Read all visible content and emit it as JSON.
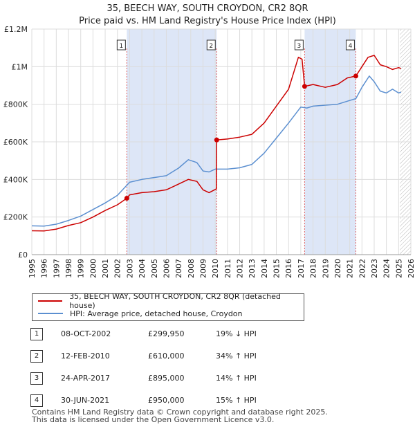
{
  "title": {
    "line1": "35, BEECH WAY, SOUTH CROYDON, CR2 8QR",
    "line2": "Price paid vs. HM Land Registry's House Price Index (HPI)"
  },
  "legend": {
    "property_label": "35, BEECH WAY, SOUTH CROYDON, CR2 8QR (detached house)",
    "hpi_label": "HPI: Average price, detached house, Croydon",
    "property_color": "#cc0000",
    "hpi_color": "#5b8fd0"
  },
  "sales": [
    {
      "num": "1",
      "date": "08-OCT-2002",
      "price": "£299,950",
      "hpi": "19% ↓ HPI"
    },
    {
      "num": "2",
      "date": "12-FEB-2010",
      "price": "£610,000",
      "hpi": "34% ↑ HPI"
    },
    {
      "num": "3",
      "date": "24-APR-2017",
      "price": "£895,000",
      "hpi": "14% ↑ HPI"
    },
    {
      "num": "4",
      "date": "30-JUN-2021",
      "price": "£950,000",
      "hpi": "15% ↑ HPI"
    }
  ],
  "footer": {
    "line1": "Contains HM Land Registry data © Crown copyright and database right 2025.",
    "line2": "This data is licensed under the Open Government Licence v3.0."
  },
  "chart_data": {
    "type": "line",
    "title": "35, BEECH WAY, SOUTH CROYDON, CR2 8QR",
    "subtitle": "Price paid vs. HM Land Registry's House Price Index (HPI)",
    "xlabel": "",
    "ylabel": "",
    "xlim": [
      1995,
      2026
    ],
    "ylim": [
      0,
      1200000
    ],
    "x_ticks": [
      1995,
      1996,
      1997,
      1998,
      1999,
      2000,
      2001,
      2002,
      2003,
      2004,
      2005,
      2006,
      2007,
      2008,
      2009,
      2010,
      2011,
      2012,
      2013,
      2014,
      2015,
      2016,
      2017,
      2018,
      2019,
      2020,
      2021,
      2022,
      2023,
      2024,
      2025,
      2026
    ],
    "y_ticks": [
      {
        "value": 0,
        "label": "£0"
      },
      {
        "value": 200000,
        "label": "£200K"
      },
      {
        "value": 400000,
        "label": "£400K"
      },
      {
        "value": 600000,
        "label": "£600K"
      },
      {
        "value": 800000,
        "label": "£800K"
      },
      {
        "value": 1000000,
        "label": "£1M"
      },
      {
        "value": 1200000,
        "label": "£1.2M"
      }
    ],
    "grid": true,
    "shaded_periods": [
      [
        2002.77,
        2010.12
      ],
      [
        2017.31,
        2021.5
      ]
    ],
    "future_hatch_from": 2025.1,
    "series": [
      {
        "name": "35, BEECH WAY, SOUTH CROYDON, CR2 8QR (detached house)",
        "color": "#cc0000",
        "points": [
          [
            1995,
            127000
          ],
          [
            1996,
            126000
          ],
          [
            1997,
            136000
          ],
          [
            1998,
            155000
          ],
          [
            1999,
            170000
          ],
          [
            2000,
            200000
          ],
          [
            2001,
            235000
          ],
          [
            2002,
            265000
          ],
          [
            2002.77,
            299950
          ],
          [
            2003,
            318000
          ],
          [
            2004,
            330000
          ],
          [
            2005,
            335000
          ],
          [
            2006,
            345000
          ],
          [
            2007,
            375000
          ],
          [
            2007.8,
            400000
          ],
          [
            2008.5,
            390000
          ],
          [
            2009,
            345000
          ],
          [
            2009.5,
            330000
          ],
          [
            2010.1,
            350000
          ],
          [
            2010.12,
            610000
          ],
          [
            2011,
            615000
          ],
          [
            2012,
            625000
          ],
          [
            2013,
            640000
          ],
          [
            2014,
            700000
          ],
          [
            2015,
            790000
          ],
          [
            2016,
            880000
          ],
          [
            2016.8,
            1050000
          ],
          [
            2017.1,
            1040000
          ],
          [
            2017.31,
            895000
          ],
          [
            2018,
            905000
          ],
          [
            2019,
            890000
          ],
          [
            2020,
            905000
          ],
          [
            2020.8,
            940000
          ],
          [
            2021.5,
            950000
          ],
          [
            2022,
            1000000
          ],
          [
            2022.5,
            1050000
          ],
          [
            2023,
            1060000
          ],
          [
            2023.5,
            1010000
          ],
          [
            2024,
            1000000
          ],
          [
            2024.5,
            985000
          ],
          [
            2025,
            995000
          ],
          [
            2025.2,
            990000
          ]
        ]
      },
      {
        "name": "HPI: Average price, detached house, Croydon",
        "color": "#5b8fd0",
        "points": [
          [
            1995,
            153000
          ],
          [
            1996,
            152000
          ],
          [
            1997,
            162000
          ],
          [
            1998,
            182000
          ],
          [
            1999,
            205000
          ],
          [
            2000,
            240000
          ],
          [
            2001,
            275000
          ],
          [
            2002,
            315000
          ],
          [
            2003,
            385000
          ],
          [
            2004,
            400000
          ],
          [
            2005,
            410000
          ],
          [
            2006,
            420000
          ],
          [
            2007,
            460000
          ],
          [
            2007.8,
            505000
          ],
          [
            2008.5,
            490000
          ],
          [
            2009,
            445000
          ],
          [
            2009.5,
            440000
          ],
          [
            2010,
            455000
          ],
          [
            2011,
            455000
          ],
          [
            2012,
            462000
          ],
          [
            2013,
            480000
          ],
          [
            2014,
            540000
          ],
          [
            2015,
            620000
          ],
          [
            2016,
            700000
          ],
          [
            2017,
            785000
          ],
          [
            2017.5,
            780000
          ],
          [
            2018,
            790000
          ],
          [
            2019,
            795000
          ],
          [
            2020,
            800000
          ],
          [
            2021,
            820000
          ],
          [
            2021.5,
            830000
          ],
          [
            2022,
            890000
          ],
          [
            2022.6,
            950000
          ],
          [
            2023,
            920000
          ],
          [
            2023.5,
            870000
          ],
          [
            2024,
            860000
          ],
          [
            2024.5,
            880000
          ],
          [
            2025,
            860000
          ],
          [
            2025.2,
            865000
          ]
        ]
      }
    ],
    "markers": [
      {
        "id": "1",
        "x": 2002.77,
        "y": 299950
      },
      {
        "id": "2",
        "x": 2010.12,
        "y": 610000
      },
      {
        "id": "3",
        "x": 2017.31,
        "y": 895000
      },
      {
        "id": "4",
        "x": 2021.5,
        "y": 950000
      }
    ]
  }
}
